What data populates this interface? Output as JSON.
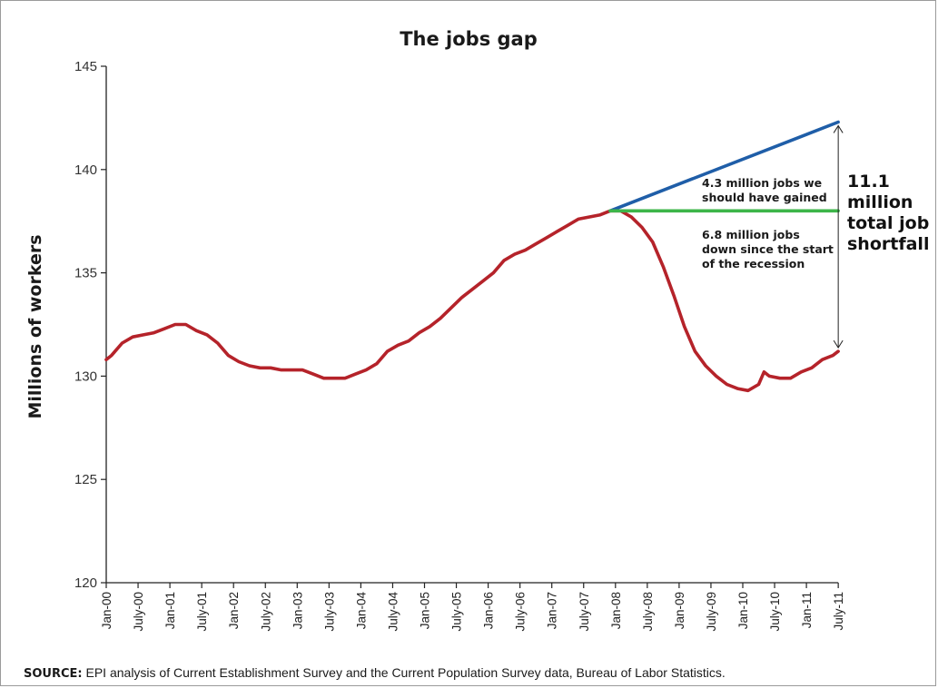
{
  "chart_data": {
    "type": "line",
    "title": "The jobs gap",
    "ylabel": "Millions of workers",
    "xlabel": "",
    "ylim": [
      120,
      145
    ],
    "yticks": [
      120,
      125,
      130,
      135,
      140,
      145
    ],
    "xticks": [
      "Jan-00",
      "July-00",
      "Jan-01",
      "July-01",
      "Jan-02",
      "July-02",
      "Jan-03",
      "July-03",
      "Jan-04",
      "July-04",
      "Jan-05",
      "July-05",
      "Jan-06",
      "July-06",
      "Jan-07",
      "July-07",
      "Jan-08",
      "July-08",
      "Jan-09",
      "July-09",
      "Jan-10",
      "July-10",
      "Jan-11",
      "July-11"
    ],
    "series": [
      {
        "color": "#b5232a",
        "points": [
          [
            "Jan-00",
            130.8
          ],
          [
            "Feb-00",
            131.0
          ],
          [
            "Apr-00",
            131.6
          ],
          [
            "Jun-00",
            131.9
          ],
          [
            "Aug-00",
            132.0
          ],
          [
            "Oct-00",
            132.1
          ],
          [
            "Dec-00",
            132.3
          ],
          [
            "Feb-01",
            132.5
          ],
          [
            "Apr-01",
            132.5
          ],
          [
            "Jun-01",
            132.2
          ],
          [
            "Aug-01",
            132.0
          ],
          [
            "Oct-01",
            131.6
          ],
          [
            "Dec-01",
            131.0
          ],
          [
            "Feb-02",
            130.7
          ],
          [
            "Apr-02",
            130.5
          ],
          [
            "Jun-02",
            130.4
          ],
          [
            "Aug-02",
            130.4
          ],
          [
            "Oct-02",
            130.3
          ],
          [
            "Dec-02",
            130.3
          ],
          [
            "Feb-03",
            130.3
          ],
          [
            "Apr-03",
            130.1
          ],
          [
            "Jun-03",
            129.9
          ],
          [
            "Aug-03",
            129.9
          ],
          [
            "Oct-03",
            129.9
          ],
          [
            "Dec-03",
            130.1
          ],
          [
            "Feb-04",
            130.3
          ],
          [
            "Apr-04",
            130.6
          ],
          [
            "Jun-04",
            131.2
          ],
          [
            "Aug-04",
            131.5
          ],
          [
            "Oct-04",
            131.7
          ],
          [
            "Dec-04",
            132.1
          ],
          [
            "Feb-05",
            132.4
          ],
          [
            "Apr-05",
            132.8
          ],
          [
            "Jun-05",
            133.3
          ],
          [
            "Aug-05",
            133.8
          ],
          [
            "Oct-05",
            134.2
          ],
          [
            "Dec-05",
            134.6
          ],
          [
            "Feb-06",
            135.0
          ],
          [
            "Apr-06",
            135.6
          ],
          [
            "Jun-06",
            135.9
          ],
          [
            "Aug-06",
            136.1
          ],
          [
            "Oct-06",
            136.4
          ],
          [
            "Dec-06",
            136.7
          ],
          [
            "Feb-07",
            137.0
          ],
          [
            "Apr-07",
            137.3
          ],
          [
            "Jun-07",
            137.6
          ],
          [
            "Aug-07",
            137.7
          ],
          [
            "Oct-07",
            137.8
          ],
          [
            "Dec-07",
            138.0
          ],
          [
            "Feb-08",
            138.0
          ],
          [
            "Apr-08",
            137.7
          ],
          [
            "Jun-08",
            137.2
          ],
          [
            "Aug-08",
            136.5
          ],
          [
            "Oct-08",
            135.3
          ],
          [
            "Dec-08",
            133.9
          ],
          [
            "Feb-09",
            132.4
          ],
          [
            "Apr-09",
            131.2
          ],
          [
            "Jun-09",
            130.5
          ],
          [
            "Aug-09",
            130.0
          ],
          [
            "Oct-09",
            129.6
          ],
          [
            "Dec-09",
            129.4
          ],
          [
            "Feb-10",
            129.3
          ],
          [
            "Apr-10",
            129.6
          ],
          [
            "May-10",
            130.2
          ],
          [
            "Jun-10",
            130.0
          ],
          [
            "Aug-10",
            129.9
          ],
          [
            "Oct-10",
            129.9
          ],
          [
            "Dec-10",
            130.2
          ],
          [
            "Feb-11",
            130.4
          ],
          [
            "Apr-11",
            130.8
          ],
          [
            "Jun-11",
            131.0
          ],
          [
            "July-11",
            131.2
          ]
        ]
      },
      {
        "color": "#1f5ea8",
        "points": [
          [
            "Dec-07",
            138.0
          ],
          [
            "July-11",
            142.3
          ]
        ]
      },
      {
        "color": "#3db54a",
        "points": [
          [
            "Dec-07",
            138.0
          ],
          [
            "July-11",
            138.0
          ]
        ]
      }
    ],
    "annotations": [
      {
        "lines": [
          "4.3 million jobs we",
          "should have gained"
        ]
      },
      {
        "lines": [
          "6.8 million jobs",
          "down since the start",
          "of the recession"
        ]
      },
      {
        "lines": [
          "11.1",
          "million",
          "total job",
          "shortfall"
        ]
      }
    ]
  },
  "source": {
    "label": "SOURCE:",
    "text": " EPI analysis of Current Establishment Survey and the Current Population Survey data, Bureau of Labor Statistics."
  }
}
